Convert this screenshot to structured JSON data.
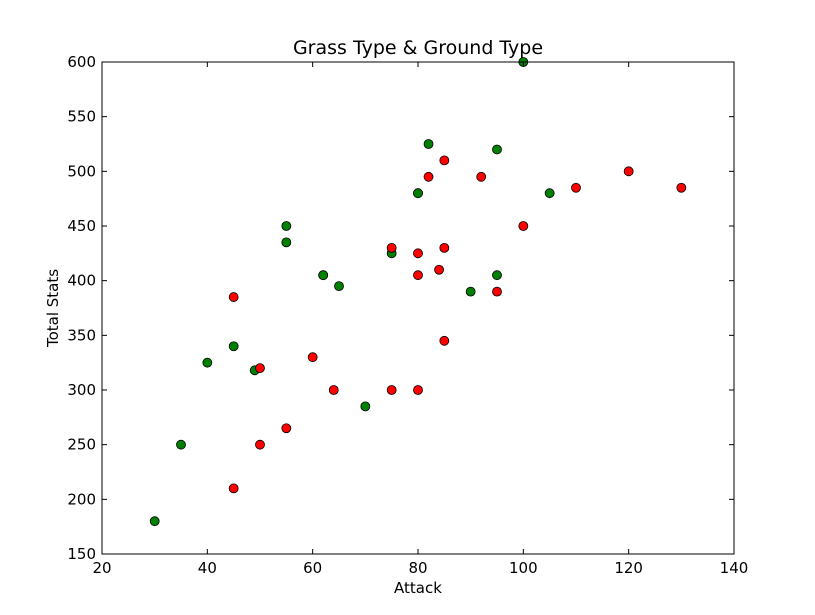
{
  "chart_data": {
    "type": "scatter",
    "title": "Grass Type & Ground Type",
    "xlabel": "Attack",
    "ylabel": "Total Stats",
    "xlim": [
      20,
      140
    ],
    "ylim": [
      150,
      600
    ],
    "x_ticks": [
      20,
      40,
      60,
      80,
      100,
      120,
      140
    ],
    "y_ticks": [
      150,
      200,
      250,
      300,
      350,
      400,
      450,
      500,
      550,
      600
    ],
    "grid": false,
    "legend": "none",
    "series": [
      {
        "color": "#008000",
        "points": [
          [
            30,
            180
          ],
          [
            35,
            250
          ],
          [
            40,
            325
          ],
          [
            45,
            340
          ],
          [
            49,
            318
          ],
          [
            55,
            450
          ],
          [
            55,
            435
          ],
          [
            62,
            405
          ],
          [
            62,
            405
          ],
          [
            65,
            395
          ],
          [
            70,
            285
          ],
          [
            75,
            425
          ],
          [
            80,
            480
          ],
          [
            80,
            480
          ],
          [
            82,
            525
          ],
          [
            90,
            390
          ],
          [
            95,
            520
          ],
          [
            95,
            405
          ],
          [
            100,
            600
          ],
          [
            105,
            480
          ]
        ]
      },
      {
        "color": "#ff0000",
        "points": [
          [
            45,
            210
          ],
          [
            45,
            385
          ],
          [
            50,
            250
          ],
          [
            50,
            320
          ],
          [
            55,
            265
          ],
          [
            60,
            330
          ],
          [
            64,
            300
          ],
          [
            75,
            300
          ],
          [
            75,
            430
          ],
          [
            80,
            300
          ],
          [
            80,
            425
          ],
          [
            80,
            405
          ],
          [
            82,
            495
          ],
          [
            84,
            410
          ],
          [
            85,
            510
          ],
          [
            85,
            430
          ],
          [
            85,
            345
          ],
          [
            92,
            495
          ],
          [
            95,
            390
          ],
          [
            100,
            450
          ],
          [
            110,
            485
          ],
          [
            120,
            500
          ],
          [
            130,
            485
          ]
        ]
      }
    ]
  }
}
